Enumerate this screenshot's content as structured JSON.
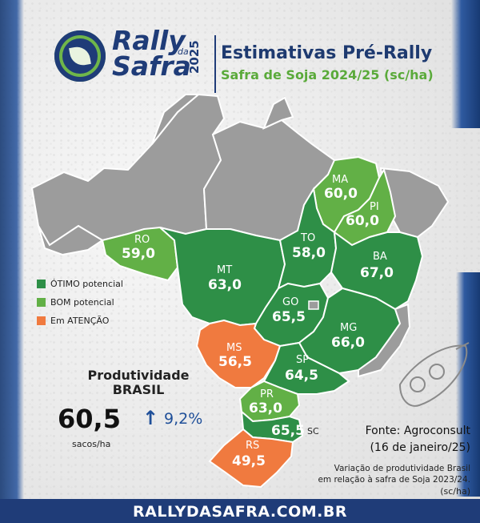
{
  "header": {
    "logo_line1": "Rally",
    "logo_da": "da",
    "logo_line2": "Safra",
    "logo_year": "2025",
    "title": "Estimativas Pré-Rally",
    "subtitle": "Safra de Soja 2024/25 (sc/ha)"
  },
  "colors": {
    "otimo": "#2e8f47",
    "bom": "#62b046",
    "atencao": "#f07a3f",
    "sem_dado": "#9c9c9c",
    "brand_blue": "#1f3c78"
  },
  "legend": [
    {
      "label": "ÓTIMO potencial",
      "color": "#2e8f47"
    },
    {
      "label": "BOM potencial",
      "color": "#62b046"
    },
    {
      "label": "Em ATENÇÃO",
      "color": "#f07a3f"
    }
  ],
  "states": [
    {
      "abbr": "MA",
      "value": "60,0",
      "category": "bom"
    },
    {
      "abbr": "PI",
      "value": "60,0",
      "category": "bom"
    },
    {
      "abbr": "RO",
      "value": "59,0",
      "category": "bom"
    },
    {
      "abbr": "TO",
      "value": "58,0",
      "category": "otimo"
    },
    {
      "abbr": "BA",
      "value": "67,0",
      "category": "otimo"
    },
    {
      "abbr": "MT",
      "value": "63,0",
      "category": "otimo"
    },
    {
      "abbr": "GO",
      "value": "65,5",
      "category": "otimo"
    },
    {
      "abbr": "MG",
      "value": "66,0",
      "category": "otimo"
    },
    {
      "abbr": "MS",
      "value": "56,5",
      "category": "atencao"
    },
    {
      "abbr": "SP",
      "value": "64,5",
      "category": "otimo"
    },
    {
      "abbr": "PR",
      "value": "63,0",
      "category": "bom"
    },
    {
      "abbr": "SC",
      "value": "65,5",
      "category": "otimo"
    },
    {
      "abbr": "RS",
      "value": "49,5",
      "category": "atencao"
    }
  ],
  "produtividade": {
    "title_line1": "Produtividade",
    "title_line2": "BRASIL",
    "value": "60,5",
    "unit": "sacos/ha",
    "arrow": "↑",
    "variation": "9,2%"
  },
  "fonte": {
    "line1": "Fonte: Agroconsult",
    "line2": "(16 de janeiro/25)"
  },
  "note": {
    "line1": "Variação de produtividade Brasil",
    "line2": "em relação à safra de Soja 2023/24.",
    "line3": "(sc/ha)"
  },
  "footer": "RALLYDASAFRA.COM.BR"
}
